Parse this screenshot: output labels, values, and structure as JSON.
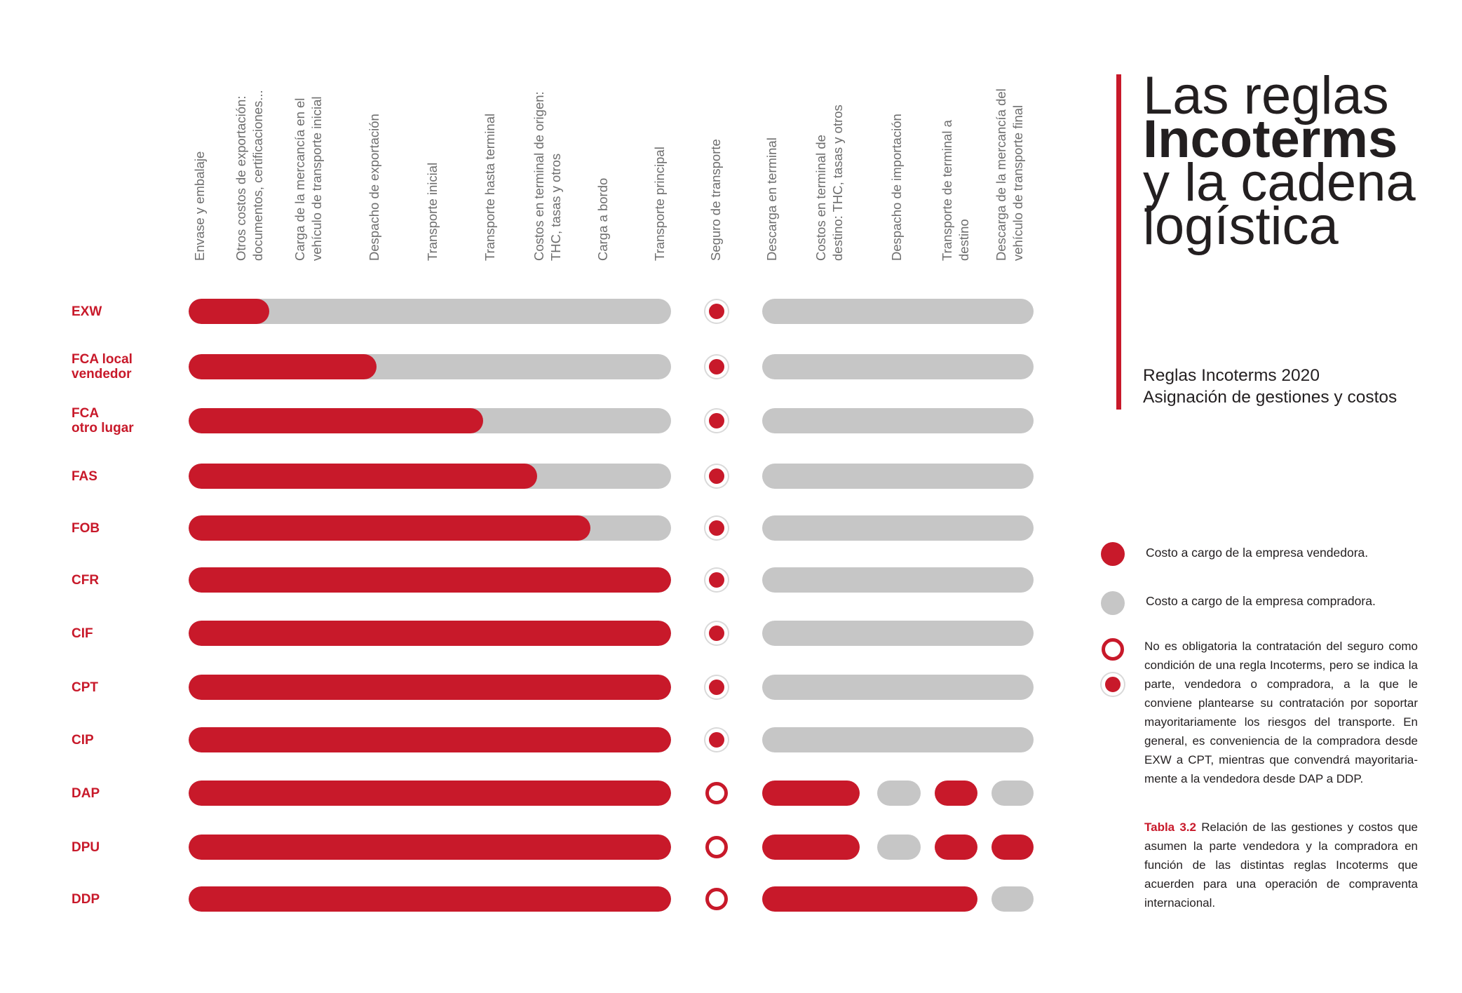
{
  "title": {
    "line1": "Las reglas",
    "line2": "Incoterms",
    "line3": "y la cadena",
    "line4": "logística",
    "subtitle1": "Reglas Incoterms 2020",
    "subtitle2": "Asignación de gestiones y costos"
  },
  "columns": [
    "Envase y embalaje",
    "Otros costos de exportación:\ndocumentos, certificaciones...",
    "Carga de la mercancía en el\nvehículo de transporte inicial",
    "Despacho de exportación",
    "Transporte inicial",
    "Transporte hasta terminal",
    "Costos en terminal de origen:\nTHC, tasas y otros",
    "Carga a bordo",
    "Transporte principal",
    "Seguro de transporte",
    "Descarga en terminal",
    "Costos en terminal de\ndestino: THC, tasas y otros",
    "Despacho de importación",
    "Transporte de terminal a\ndestino",
    "Descarga de la mercancía del\nvehículo de transporte final"
  ],
  "legend": {
    "seller": "Costo a cargo de la empresa vendedora.",
    "buyer": "Costo a cargo de la empresa compradora.",
    "insurance_note": "No es obligatoria la contratación del seguro como condición de una regla Incoterms, pero se indica la parte, vendedora o compradora, a la que le conviene plantearse su contratación por soportar mayoritariamente los riesgos del transporte. En general, es conveniencia de la compradora desde EXW a CPT, mientras que convendrá mayoritaria-mente a la vendedora desde DAP a DDP.",
    "colors": {
      "seller": "#c8192a",
      "buyer": "#c6c6c6"
    }
  },
  "caption": {
    "label": "Tabla 3.2",
    "text": " Relación de las gestiones y costos que asumen la parte vendedora y la compradora en función de las distintas reglas Incoterms que acuerden para una operación de compraventa internacional."
  },
  "chart_data": {
    "type": "table",
    "rows": [
      {
        "name": "EXW",
        "export_seller_columns": 1.5,
        "insurance": "seller-filled",
        "import": "all-buyer"
      },
      {
        "name": "FCA local\nvendedor",
        "export_seller_columns": 3.5,
        "insurance": "seller-filled",
        "import": "all-buyer"
      },
      {
        "name": "FCA\notro lugar",
        "export_seller_columns": 5.5,
        "insurance": "seller-filled",
        "import": "all-buyer"
      },
      {
        "name": "FAS",
        "export_seller_columns": 6.5,
        "insurance": "seller-filled",
        "import": "all-buyer"
      },
      {
        "name": "FOB",
        "export_seller_columns": 7.5,
        "insurance": "seller-filled",
        "import": "all-buyer"
      },
      {
        "name": "CFR",
        "export_seller_columns": 9,
        "insurance": "seller-filled",
        "import": "all-buyer"
      },
      {
        "name": "CIF",
        "export_seller_columns": 9,
        "insurance": "seller-filled",
        "import": "all-buyer"
      },
      {
        "name": "CPT",
        "export_seller_columns": 9,
        "insurance": "seller-filled",
        "import": "all-buyer"
      },
      {
        "name": "CIP",
        "export_seller_columns": 9,
        "insurance": "seller-filled",
        "import": "all-buyer"
      },
      {
        "name": "DAP",
        "export_seller_columns": 9,
        "insurance": "open",
        "import": "dap"
      },
      {
        "name": "DPU",
        "export_seller_columns": 9,
        "insurance": "open",
        "import": "dpu"
      },
      {
        "name": "DDP",
        "export_seller_columns": 9,
        "insurance": "open",
        "import": "ddp"
      }
    ]
  }
}
